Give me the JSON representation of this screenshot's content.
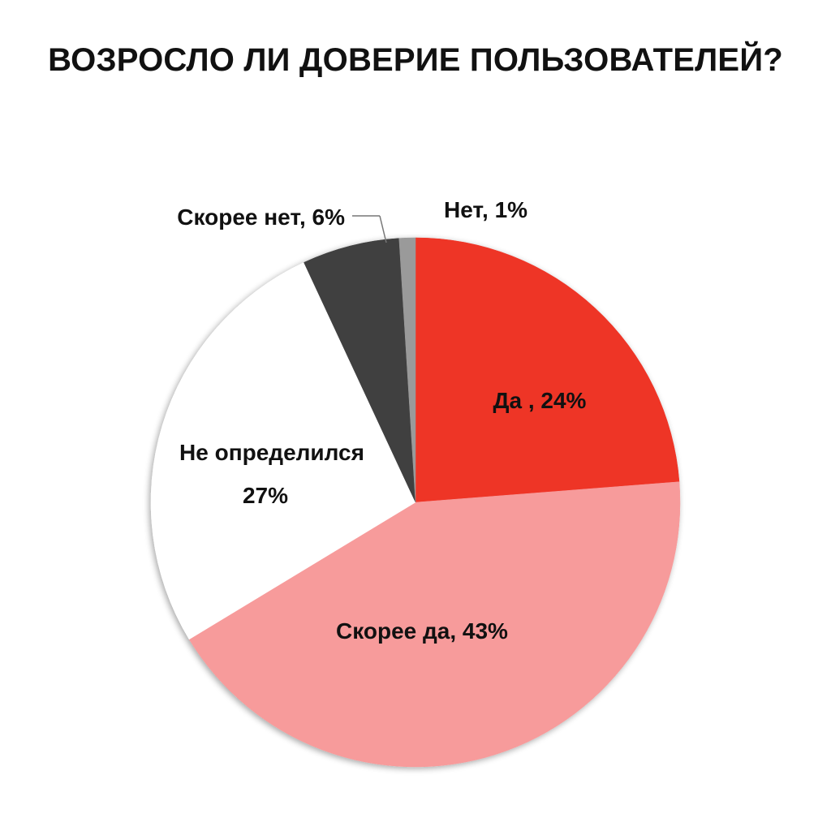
{
  "chart_data": {
    "type": "pie",
    "title": "ВОЗРОСЛО ЛИ ДОВЕРИЕ ПОЛЬЗОВАТЕЛЕЙ?",
    "slices": [
      {
        "label": "Да",
        "value": 24,
        "display": "Да , 24%",
        "color": "#ee3427"
      },
      {
        "label": "Скорее да",
        "value": 43,
        "display": "Скорее да, 43%",
        "color": "#f79b9b"
      },
      {
        "label": "Не определился",
        "value": 27,
        "display_lines": [
          "Не определился",
          "27%"
        ],
        "color": "#ffffff"
      },
      {
        "label": "Скорее нет",
        "value": 6,
        "display": "Скорее нет,  6%",
        "color": "#404040"
      },
      {
        "label": "Нет",
        "value": 1,
        "display": "Нет, 1%",
        "color": "#9a9a9a"
      }
    ],
    "start_angle_deg": 0,
    "direction": "clockwise",
    "legend": "none"
  }
}
